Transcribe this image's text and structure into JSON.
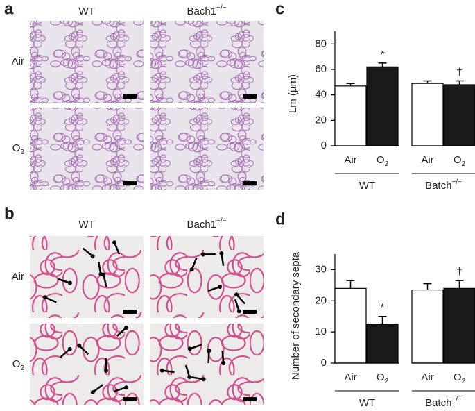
{
  "panels": {
    "a": "a",
    "b": "b",
    "c": "c",
    "d": "d"
  },
  "images": {
    "columns": [
      "WT",
      {
        "base": "Bach1",
        "sup": "−/−"
      }
    ],
    "rows": [
      "Air",
      {
        "base": "O",
        "sub": "2"
      }
    ]
  },
  "chart_data": [
    {
      "type": "bar",
      "y_label": "Lm (μm)",
      "categories": [
        "Air",
        {
          "base": "O",
          "sub": "2"
        },
        "Air",
        {
          "base": "O",
          "sub": "2"
        }
      ],
      "groups": [
        "WT",
        {
          "base": "Batch",
          "sup": "−/−"
        }
      ],
      "values": [
        47,
        62,
        49,
        48
      ],
      "errors": [
        2,
        3,
        2,
        3
      ],
      "value_annotations": [
        null,
        "*",
        null,
        "†"
      ],
      "colors": [
        "#ffffff",
        "#1a1a1a",
        "#ffffff",
        "#1a1a1a"
      ],
      "ylim": [
        0,
        90
      ],
      "yticks": [
        0,
        20,
        40,
        60,
        80
      ]
    },
    {
      "type": "bar",
      "y_label": "Number of secondary septa",
      "categories": [
        "Air",
        {
          "base": "O",
          "sub": "2"
        },
        "Air",
        {
          "base": "O",
          "sub": "2"
        }
      ],
      "groups": [
        "WT",
        {
          "base": "Batch",
          "sup": "−/−"
        }
      ],
      "values": [
        24,
        12.5,
        23.5,
        24
      ],
      "errors": [
        2.5,
        2.5,
        2,
        2.5
      ],
      "value_annotations": [
        null,
        "*",
        null,
        "†"
      ],
      "colors": [
        "#ffffff",
        "#1a1a1a",
        "#ffffff",
        "#1a1a1a"
      ],
      "ylim": [
        0,
        35
      ],
      "yticks": [
        0,
        10,
        20,
        30
      ]
    }
  ]
}
